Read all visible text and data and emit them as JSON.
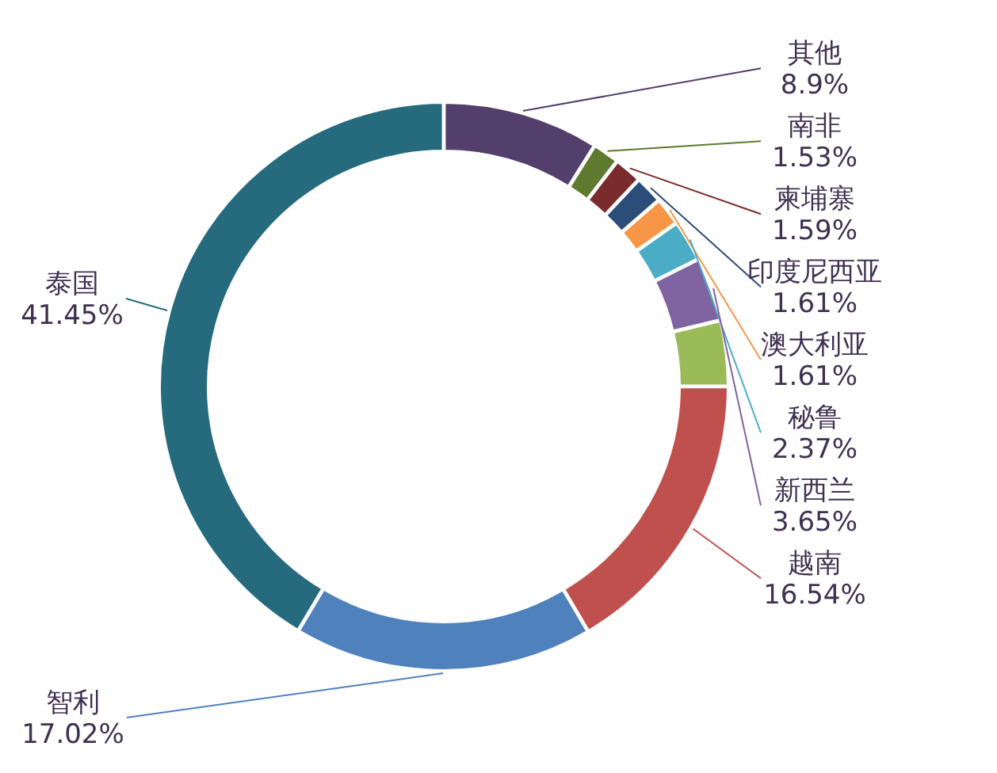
{
  "chart_data": {
    "type": "donut",
    "categories": [
      "其他",
      "南非",
      "柬埔寨",
      "印度尼西亚",
      "澳大利亚",
      "秘鲁",
      "新西兰",
      null,
      "越南",
      "智利",
      "泰国"
    ],
    "values": [
      8.9,
      1.53,
      1.59,
      1.61,
      1.61,
      2.37,
      3.65,
      3.73,
      16.54,
      17.02,
      41.45
    ],
    "value_labels": [
      "8.9%",
      "1.53%",
      "1.59%",
      "1.61%",
      "1.61%",
      "2.37%",
      "3.65%",
      null,
      "16.54%",
      "17.02%",
      "41.45%"
    ],
    "colors": [
      "#533f6b",
      "#5f7a2f",
      "#7b2b2b",
      "#2c4c7a",
      "#f79646",
      "#4bacc6",
      "#8064a2",
      "#9bbb59",
      "#c0504d",
      "#4f81bd",
      "#256b7d"
    ]
  }
}
